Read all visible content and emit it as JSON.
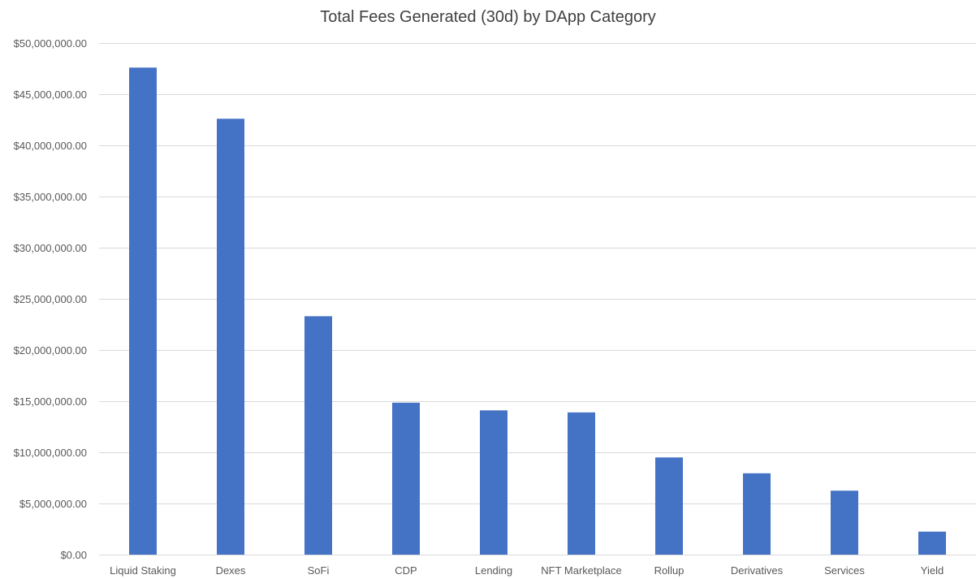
{
  "chart_data": {
    "type": "bar",
    "title": "Total Fees Generated (30d) by DApp Category",
    "xlabel": "",
    "ylabel": "",
    "categories": [
      "Liquid Staking",
      "Dexes",
      "SoFi",
      "CDP",
      "Lending",
      "NFT Marketplace",
      "Rollup",
      "Derivatives",
      "Services",
      "Yield"
    ],
    "values": [
      47600000,
      42600000,
      23300000,
      14850000,
      14100000,
      13900000,
      9500000,
      7950000,
      6250000,
      2250000
    ],
    "ylim": [
      0,
      50000000
    ],
    "yticks": [
      0,
      5000000,
      10000000,
      15000000,
      20000000,
      25000000,
      30000000,
      35000000,
      40000000,
      45000000,
      50000000
    ],
    "ytick_labels": [
      "$0.00",
      "$5,000,000.00",
      "$10,000,000.00",
      "$15,000,000.00",
      "$20,000,000.00",
      "$25,000,000.00",
      "$30,000,000.00",
      "$35,000,000.00",
      "$40,000,000.00",
      "$45,000,000.00",
      "$50,000,000.00"
    ],
    "grid": true,
    "legend": "none",
    "bar_color": "#4472c4",
    "grid_color": "#d9d9d9",
    "text_color": "#595959",
    "title_color": "#404040"
  }
}
